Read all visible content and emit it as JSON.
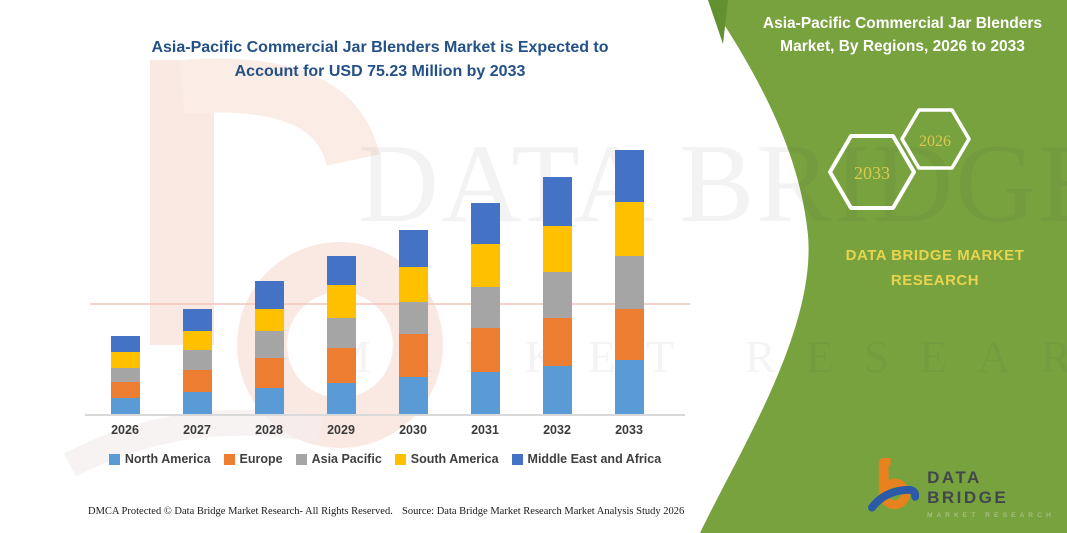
{
  "header": {
    "line1": "Asia-Pacific Commercial Jar Blenders Market is Expected to",
    "line2": "Account for USD 75.23 Million by 2033"
  },
  "panel": {
    "title_line1": "Asia-Pacific Commercial Jar Blenders",
    "title_line2": "Market, By Regions, 2026 to 2033",
    "hex_back_year": "2033",
    "hex_front_year": "2026",
    "brand_line1": "DATA BRIDGE MARKET",
    "brand_line2": "RESEARCH",
    "bg_color": "#78A23E",
    "hex_text_color": "#D9C94F"
  },
  "watermark": {
    "line1": "DATA BRIDGE",
    "line2": "MARKET RESEARCH"
  },
  "footer": {
    "dmca": "DMCA Protected © Data Bridge Market Research-  All Rights Reserved.",
    "source": "Source: Data Bridge Market Research  Market Analysis Study 2026"
  },
  "logo": {
    "name": "DATA BRIDGE",
    "subtitle": "MARKET RESEARCH",
    "orange": "#E8821E",
    "blue": "#2B5AA7"
  },
  "chart_data": {
    "type": "bar",
    "stacked": true,
    "title": "Asia-Pacific Commercial Jar Blenders Market is Expected to Account for USD 75.23 Million by 2033",
    "unit": "USD Million",
    "categories": [
      "2026",
      "2027",
      "2028",
      "2029",
      "2030",
      "2031",
      "2032",
      "2033"
    ],
    "series": [
      {
        "name": "North America",
        "color": "#5B9BD5",
        "values": [
          4.6,
          6.2,
          7.5,
          8.9,
          10.6,
          12.1,
          13.7,
          15.4
        ]
      },
      {
        "name": "Europe",
        "color": "#ED7D31",
        "values": [
          4.4,
          6.3,
          8.5,
          9.9,
          12.1,
          12.3,
          13.7,
          14.5
        ]
      },
      {
        "name": "Asia Pacific",
        "color": "#A5A5A5",
        "values": [
          4.1,
          5.7,
          7.6,
          8.5,
          9.2,
          11.9,
          13.0,
          15.2
        ]
      },
      {
        "name": "South America",
        "color": "#FFC000",
        "values": [
          4.6,
          5.5,
          6.4,
          9.6,
          10.1,
          12.1,
          13.3,
          15.2
        ]
      },
      {
        "name": "Middle East and Africa",
        "color": "#4472C4",
        "values": [
          4.5,
          6.2,
          7.9,
          8.2,
          10.4,
          11.8,
          13.8,
          14.93
        ]
      }
    ],
    "totals_estimated": [
      22.2,
      29.9,
      37.9,
      45.1,
      52.4,
      60.2,
      67.5,
      75.23
    ],
    "ylim": [
      0,
      75.23
    ],
    "grid": false,
    "value_axis_visible": false,
    "legend_position": "bottom"
  }
}
